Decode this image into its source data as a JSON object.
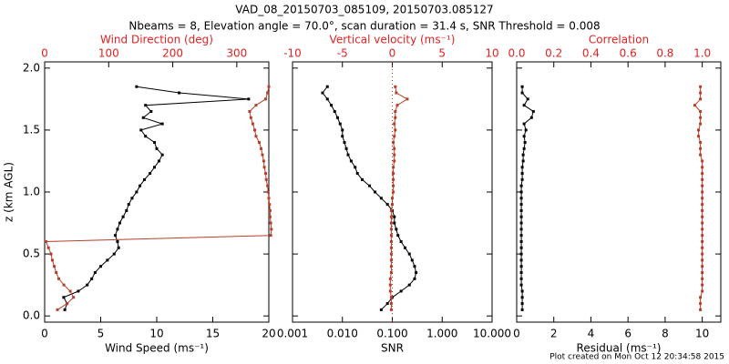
{
  "chart_data": {
    "type": "profile",
    "title": "VAD_08_20150703_085109, 20150703.085127",
    "subtitle": "Nbeams = 8, Elevation angle = 70.0°, scan duration = 31.4 s, SNR Threshold = 0.008",
    "footer": "Plot created on Mon Oct 12 20:34:58 2015",
    "y_label": "z (km AGL)",
    "ylim": [
      -0.05,
      2.05
    ],
    "yticks": [
      {
        "value": 0,
        "label": "0.0"
      },
      0.5,
      {
        "value": 1,
        "label": "1.0"
      },
      1.5,
      {
        "value": 2,
        "label": "2.0"
      }
    ],
    "y": [
      0.05,
      0.1,
      0.15,
      0.2,
      0.25,
      0.3,
      0.35,
      0.4,
      0.45,
      0.5,
      0.55,
      0.6,
      0.65,
      0.7,
      0.75,
      0.8,
      0.85,
      0.9,
      0.95,
      1.0,
      1.05,
      1.1,
      1.15,
      1.2,
      1.25,
      1.3,
      1.35,
      1.4,
      1.45,
      1.5,
      1.55,
      1.6,
      1.65,
      1.7,
      1.75,
      1.8,
      1.85
    ],
    "panels": [
      {
        "xlabel": "Wind Speed (ms⁻¹)",
        "xlim": [
          0,
          20
        ],
        "xticks": [
          0,
          5,
          10,
          15,
          20
        ],
        "xscale": "linear",
        "x2label": "Wind Direction (deg)",
        "x2lim": [
          0,
          350
        ],
        "x2ticks": [
          0,
          100,
          200,
          300
        ],
        "x2color": "#dd2222",
        "series": [
          {
            "axis": "x",
            "color": "#000000",
            "values": [
              1.8,
              2.0,
              1.7,
              3.0,
              3.8,
              4.2,
              4.5,
              5.0,
              5.6,
              6.2,
              6.6,
              6.5,
              6.3,
              6.5,
              6.7,
              7.0,
              7.3,
              7.5,
              7.8,
              8.2,
              8.5,
              8.9,
              9.4,
              9.8,
              10.2,
              10.5,
              10.0,
              9.8,
              9.0,
              8.6,
              10.5,
              8.8,
              9.5,
              9.0,
              18.2,
              12.0,
              8.2
            ]
          },
          {
            "axis": "x2",
            "color": "#b5402a",
            "values": [
              20,
              35,
              45,
              40,
              30,
              22,
              18,
              15,
              12,
              10,
              6,
              2,
              353,
              354,
              353,
              352,
              352,
              351,
              350,
              349,
              348,
              346,
              345,
              343,
              342,
              340,
              338,
              335,
              330,
              328,
              325,
              322,
              320,
              330,
              345,
              348,
              350
            ]
          }
        ]
      },
      {
        "xlabel": "SNR",
        "xlim": [
          0.001,
          10
        ],
        "xscale": "log",
        "xticks": [
          0.001,
          {
            "value": 0.01,
            "label": "0.010"
          },
          {
            "value": 0.1,
            "label": "0.100"
          },
          {
            "value": 1,
            "label": "1.000"
          },
          {
            "value": 10,
            "label": "10.000"
          }
        ],
        "x2label": "Vertical velocity (ms⁻¹)",
        "x2lim": [
          -10,
          10
        ],
        "x2ticks": [
          -10,
          -5,
          0,
          5,
          10
        ],
        "x2color": "#dd2222",
        "zero_line": true,
        "series": [
          {
            "axis": "x",
            "color": "#000000",
            "values": [
              0.06,
              0.08,
              0.1,
              0.15,
              0.22,
              0.28,
              0.3,
              0.28,
              0.25,
              0.22,
              0.18,
              0.15,
              0.13,
              0.12,
              0.11,
              0.11,
              0.1,
              0.08,
              0.06,
              0.045,
              0.035,
              0.025,
              0.02,
              0.018,
              0.015,
              0.013,
              0.012,
              0.011,
              0.01,
              0.01,
              0.009,
              0.008,
              0.007,
              0.006,
              0.005,
              0.004,
              0.005
            ]
          },
          {
            "axis": "x2",
            "color": "#b5402a",
            "values": [
              -0.1,
              -0.1,
              -0.1,
              -0.2,
              -0.2,
              -0.2,
              -0.1,
              -0.1,
              -0.1,
              -0.1,
              -0.1,
              -0.1,
              -0.1,
              -0.1,
              -0.1,
              -0.1,
              -0.1,
              0.0,
              0.0,
              0.1,
              0.1,
              0.1,
              0.1,
              0.1,
              0.2,
              0.2,
              0.2,
              0.1,
              0.2,
              0.3,
              0.2,
              0.3,
              0.3,
              0.5,
              1.5,
              0.4,
              0.3
            ]
          }
        ]
      },
      {
        "xlabel": "Residual (ms⁻¹)",
        "xlim": [
          0,
          11
        ],
        "xticks": [
          0,
          2,
          4,
          6,
          8,
          10
        ],
        "xscale": "linear",
        "x2label": "Correlation",
        "x2lim": [
          0,
          1.1
        ],
        "x2ticks": [
          {
            "value": 0,
            "label": "0.0"
          },
          0.2,
          0.4,
          0.6,
          0.8,
          {
            "value": 1,
            "label": "1.0"
          }
        ],
        "x2color": "#dd2222",
        "series": [
          {
            "axis": "x",
            "color": "#000000",
            "values": [
              0.3,
              0.3,
              0.3,
              0.3,
              0.25,
              0.25,
              0.25,
              0.25,
              0.25,
              0.25,
              0.25,
              0.25,
              0.25,
              0.25,
              0.25,
              0.25,
              0.25,
              0.25,
              0.25,
              0.25,
              0.25,
              0.3,
              0.3,
              0.3,
              0.35,
              0.35,
              0.4,
              0.45,
              0.4,
              0.5,
              0.4,
              0.8,
              0.9,
              0.4,
              0.6,
              0.3,
              0.3
            ]
          },
          {
            "axis": "x2",
            "color": "#b5402a",
            "values": [
              0.99,
              0.99,
              0.99,
              1.0,
              1.0,
              1.0,
              1.0,
              1.0,
              1.0,
              1.0,
              1.0,
              1.0,
              1.0,
              1.0,
              1.0,
              1.0,
              1.0,
              1.0,
              1.0,
              1.0,
              1.0,
              1.0,
              1.0,
              1.0,
              1.0,
              0.99,
              0.99,
              0.99,
              0.98,
              0.98,
              0.99,
              0.99,
              0.99,
              0.96,
              0.99,
              0.99,
              0.99
            ]
          }
        ]
      }
    ]
  }
}
